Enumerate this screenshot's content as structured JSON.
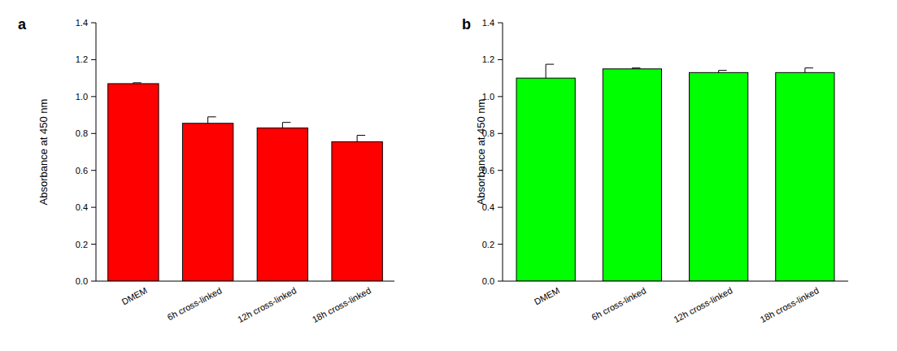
{
  "chart_data": [
    {
      "type": "bar",
      "title": "a",
      "y_label": "Absorbance at 450 nm",
      "categories": [
        "DMEM",
        "6h cross-linked",
        "12h cross-linked",
        "18h cross-linked"
      ],
      "values": [
        1.07,
        0.855,
        0.83,
        0.755
      ],
      "errors": [
        0.005,
        0.035,
        0.03,
        0.035
      ],
      "color": "#ff0000",
      "ylim": [
        0,
        1.4
      ],
      "yticks": [
        {
          "value": 0,
          "label": "0.0"
        },
        0.2,
        0.4,
        0.6,
        0.8,
        {
          "value": 1,
          "label": "1.0"
        },
        1.2,
        1.4
      ],
      "grid": false
    },
    {
      "type": "bar",
      "title": "b",
      "y_label": "Absorbance at 450 nm",
      "categories": [
        "DMEM",
        "6h cross-linked",
        "12h cross-linked",
        "18h cross-linked"
      ],
      "values": [
        1.1,
        1.15,
        1.13,
        1.13
      ],
      "errors": [
        0.075,
        0.005,
        0.012,
        0.025
      ],
      "color": "#00ff00",
      "ylim": [
        0,
        1.4
      ],
      "yticks": [
        {
          "value": 0,
          "label": "0.0"
        },
        0.2,
        0.4,
        0.6,
        0.8,
        {
          "value": 1,
          "label": "1.0"
        },
        1.2,
        1.4
      ],
      "grid": false
    }
  ]
}
